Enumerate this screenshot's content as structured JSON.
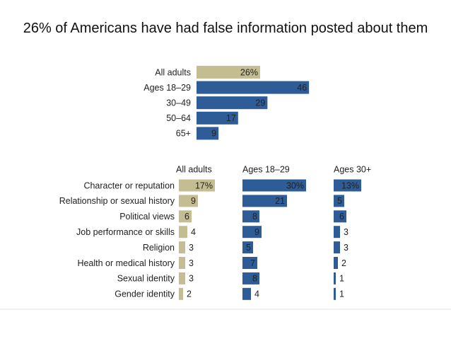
{
  "chart_data": [
    {
      "type": "bar",
      "title": "26% of Americans have had false information posted about them",
      "categories": [
        "All adults",
        "Ages 18–29",
        "30–49",
        "50–64",
        "65+"
      ],
      "values": [
        26,
        46,
        29,
        17,
        9
      ],
      "value_labels": [
        "26%",
        "46",
        "29",
        "17",
        "9"
      ],
      "colors": [
        "#c5bd92",
        "#2e5c97",
        "#2e5c97",
        "#2e5c97",
        "#2e5c97"
      ]
    },
    {
      "type": "bar",
      "categories": [
        "Character or reputation",
        "Relationship or sexual history",
        "Political views",
        "Job performance or skills",
        "Religion",
        "Health or medical history",
        "Sexual identity",
        "Gender identity"
      ],
      "series": [
        {
          "name": "All adults",
          "color": "#c5bd92",
          "values": [
            17,
            9,
            6,
            4,
            3,
            3,
            3,
            2
          ],
          "value_labels": [
            "17%",
            "9",
            "6",
            "4",
            "3",
            "3",
            "3",
            "2"
          ]
        },
        {
          "name": "Ages 18–29",
          "color": "#2e5c97",
          "values": [
            30,
            21,
            8,
            9,
            5,
            7,
            8,
            4
          ],
          "value_labels": [
            "30%",
            "21",
            "8",
            "9",
            "5",
            "7",
            "8",
            "4"
          ]
        },
        {
          "name": "Ages 30+",
          "color": "#2e5c97",
          "values": [
            13,
            5,
            6,
            3,
            3,
            2,
            1,
            1
          ],
          "value_labels": [
            "13%",
            "5",
            "6",
            "3",
            "3",
            "2",
            "1",
            "1"
          ]
        }
      ]
    }
  ]
}
